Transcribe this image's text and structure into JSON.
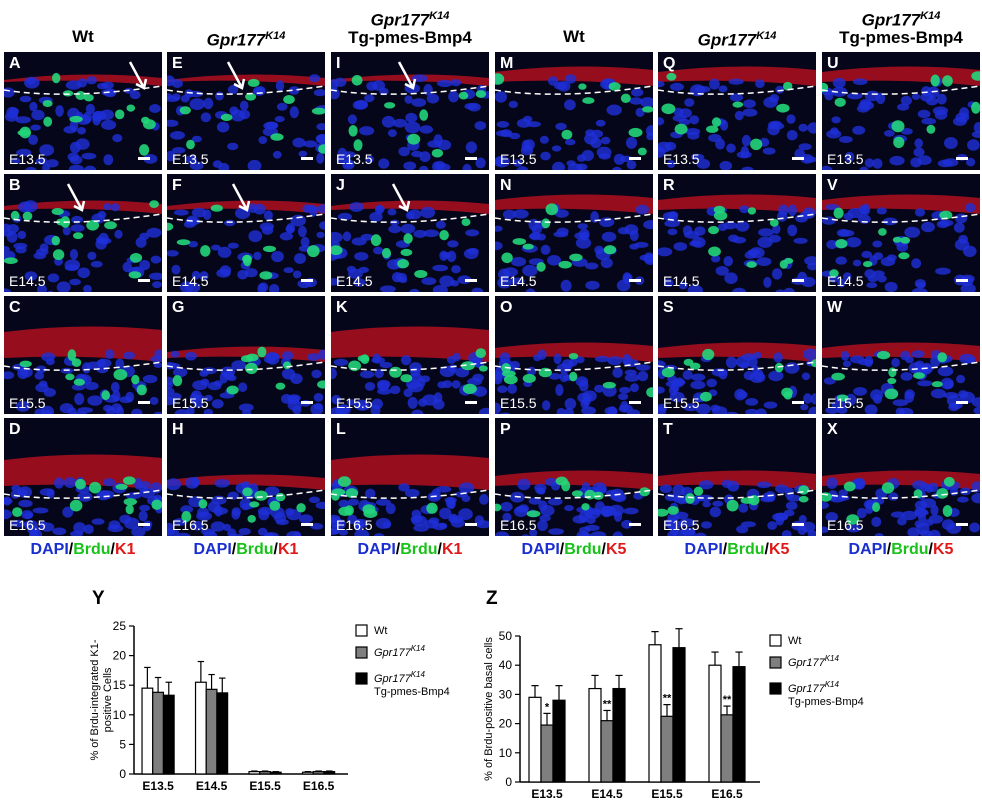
{
  "columns": [
    {
      "line1": "Wt",
      "gene": "",
      "sup": "",
      "line2": ""
    },
    {
      "line1": "",
      "gene": "Gpr177",
      "sup": "K14",
      "line2": ""
    },
    {
      "line1": "",
      "gene": "Gpr177",
      "sup": "K14",
      "line2": "Tg-pmes-Bmp4"
    },
    {
      "line1": "Wt",
      "gene": "",
      "sup": "",
      "line2": ""
    },
    {
      "line1": "",
      "gene": "Gpr177",
      "sup": "K14",
      "line2": ""
    },
    {
      "line1": "",
      "gene": "Gpr177",
      "sup": "K14",
      "line2": "Tg-pmes-Bmp4"
    }
  ],
  "panels": [
    [
      "A",
      "B",
      "C",
      "D"
    ],
    [
      "E",
      "F",
      "G",
      "H"
    ],
    [
      "I",
      "J",
      "K",
      "L"
    ],
    [
      "M",
      "N",
      "O",
      "P"
    ],
    [
      "Q",
      "R",
      "S",
      "T"
    ],
    [
      "U",
      "V",
      "W",
      "X"
    ]
  ],
  "stages": [
    "E13.5",
    "E14.5",
    "E15.5",
    "E16.5"
  ],
  "stain_labels": [
    {
      "dapi": "DAPI",
      "sep1": "/",
      "brdu": "Brdu",
      "sep2": "/",
      "marker": "K1"
    },
    {
      "dapi": "DAPI",
      "sep1": "/",
      "brdu": "Brdu",
      "sep2": "/",
      "marker": "K1"
    },
    {
      "dapi": "DAPI",
      "sep1": "/",
      "brdu": "Brdu",
      "sep2": "/",
      "marker": "K1"
    },
    {
      "dapi": "DAPI",
      "sep1": "/",
      "brdu": "Brdu",
      "sep2": "/",
      "marker": "K5"
    },
    {
      "dapi": "DAPI",
      "sep1": "/",
      "brdu": "Brdu",
      "sep2": "/",
      "marker": "K5"
    },
    {
      "dapi": "DAPI",
      "sep1": "/",
      "brdu": "Brdu",
      "sep2": "/",
      "marker": "K5"
    }
  ],
  "colors": {
    "dapi": "#1a2fcf",
    "brdu": "#18c21a",
    "k_marker": "#e01818",
    "wt_bar": "#ffffff",
    "mutant_bar": "#7f7f7f",
    "rescue_bar": "#000000"
  },
  "chart_data": [
    {
      "panel": "Y",
      "type": "bar",
      "categories": [
        "E13.5",
        "E14.5",
        "E15.5",
        "E16.5"
      ],
      "ylabel": "% of Brdu-integrated K1-positive Cells",
      "ylabel_lines": [
        "% of Brdu-integrated K1-",
        "positive Cells"
      ],
      "ylim": [
        0,
        25
      ],
      "yticks": [
        0,
        5,
        10,
        15,
        20,
        25
      ],
      "series": [
        {
          "name": "Wt",
          "values": [
            14.5,
            15.5,
            0.4,
            0.3
          ],
          "errors": [
            3.5,
            3.5,
            0.1,
            0.1
          ]
        },
        {
          "name": "Gpr177K14",
          "values": [
            13.8,
            14.3,
            0.4,
            0.4
          ],
          "errors": [
            2.5,
            2.5,
            0.1,
            0.1
          ]
        },
        {
          "name": "Gpr177K14 Tg-pmes-Bmp4",
          "values": [
            13.3,
            13.7,
            0.3,
            0.4
          ],
          "errors": [
            2.2,
            2.5,
            0.1,
            0.1
          ]
        }
      ],
      "significance": [],
      "legend": [
        {
          "gene": "Wt",
          "sup": "",
          "line2": ""
        },
        {
          "gene": "Gpr177",
          "sup": "K14",
          "line2": ""
        },
        {
          "gene": "Gpr177",
          "sup": "K14",
          "line2": "Tg-pmes-Bmp4"
        }
      ],
      "legend_position": "right"
    },
    {
      "panel": "Z",
      "type": "bar",
      "categories": [
        "E13.5",
        "E14.5",
        "E15.5",
        "E16.5"
      ],
      "ylabel": "% of Brdu-positive basal cells",
      "ylabel_lines": [
        "% of Brdu-positive basal cells"
      ],
      "ylim": [
        0,
        50
      ],
      "yticks": [
        0,
        10,
        20,
        30,
        40,
        50
      ],
      "series": [
        {
          "name": "Wt",
          "values": [
            29,
            32,
            47,
            40
          ],
          "errors": [
            4,
            4.5,
            4.5,
            4.5
          ]
        },
        {
          "name": "Gpr177K14",
          "values": [
            19.5,
            21,
            22.5,
            23
          ],
          "errors": [
            4,
            3.5,
            4,
            3
          ]
        },
        {
          "name": "Gpr177K14 Tg-pmes-Bmp4",
          "values": [
            28,
            32,
            46,
            39.5
          ],
          "errors": [
            5,
            4.5,
            6.5,
            5
          ]
        }
      ],
      "significance": [
        "*",
        "**",
        "**",
        "**"
      ],
      "legend": [
        {
          "gene": "Wt",
          "sup": "",
          "line2": ""
        },
        {
          "gene": "Gpr177",
          "sup": "K14",
          "line2": ""
        },
        {
          "gene": "Gpr177",
          "sup": "K14",
          "line2": "Tg-pmes-Bmp4"
        }
      ],
      "legend_position": "right"
    }
  ]
}
